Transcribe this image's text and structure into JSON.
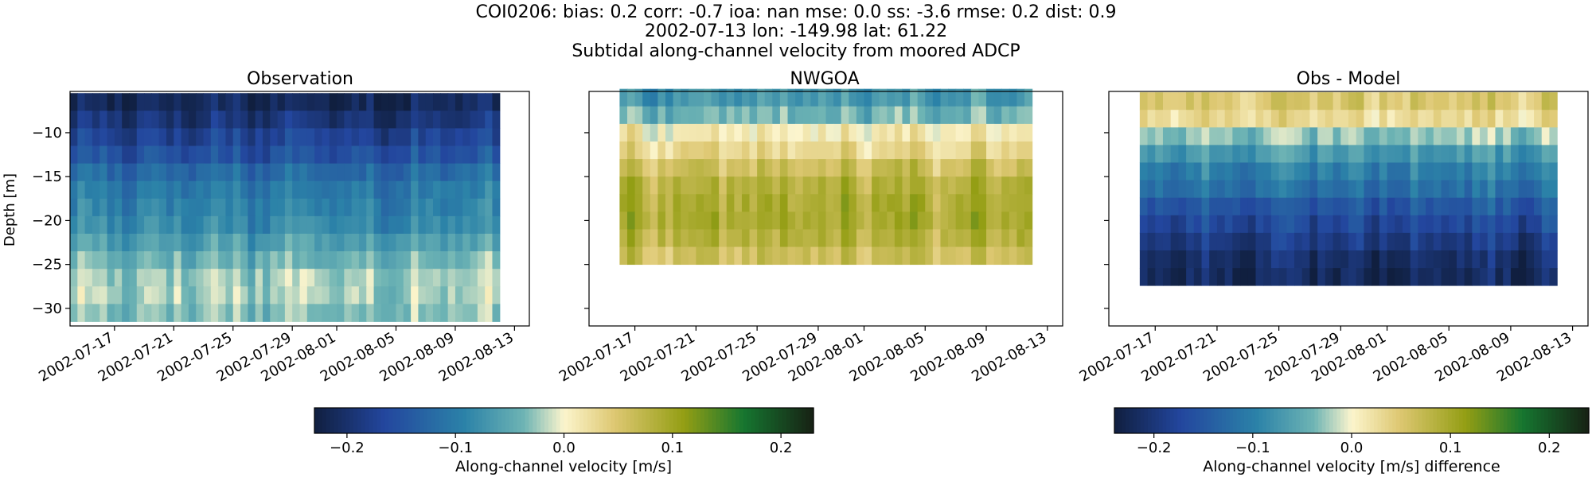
{
  "figure": {
    "title_lines": [
      "COI0206: bias: 0.2  corr: -0.7  ioa: nan  mse: 0.0  ss: -3.6  rmse: 0.2  dist: 0.9",
      "2002-07-13 lon: -149.98 lat: 61.22",
      "Subtidal along-channel velocity from moored ADCP"
    ]
  },
  "chart_data": [
    {
      "type": "heatmap",
      "title": "Observation",
      "ylabel": "Depth [m]",
      "xlabel": "",
      "x_ticks": [
        "2002-07-17",
        "2002-07-21",
        "2002-07-25",
        "2002-07-29",
        "2002-08-01",
        "2002-08-05",
        "2002-08-09",
        "2002-08-13"
      ],
      "x_range": [
        "2002-07-14",
        "2002-08-14"
      ],
      "data_time_range": [
        "2002-07-14",
        "2002-08-12"
      ],
      "y_ticks": [
        -10,
        -15,
        -20,
        -25,
        -30
      ],
      "ylim": [
        -32,
        -5.3
      ],
      "depth_bins": [
        -6.5,
        -8.5,
        -10.5,
        -12.5,
        -14.5,
        -16.5,
        -18.5,
        -20.5,
        -22.5,
        -24.5,
        -26.5,
        -28.5,
        -30.5
      ],
      "depth_bin_height": 2,
      "profile_values": [
        -0.21,
        -0.19,
        -0.17,
        -0.15,
        -0.12,
        -0.1,
        -0.09,
        -0.08,
        -0.06,
        -0.04,
        -0.02,
        -0.02,
        -0.03
      ],
      "colorbar": {
        "label": "Along-channel velocity [m/s]",
        "range": [
          -0.23,
          0.23
        ],
        "ticks": [
          -0.2,
          -0.1,
          0.0,
          0.1,
          0.2
        ],
        "tick_labels": [
          "−0.2",
          "−0.1",
          "0.0",
          "0.1",
          "0.2"
        ],
        "colormap": "delta"
      }
    },
    {
      "type": "heatmap",
      "title": "NWGOA",
      "ylabel": "",
      "xlabel": "",
      "x_ticks": [
        "2002-07-17",
        "2002-07-21",
        "2002-07-25",
        "2002-07-29",
        "2002-08-01",
        "2002-08-05",
        "2002-08-09",
        "2002-08-13"
      ],
      "x_range": [
        "2002-07-14",
        "2002-08-14"
      ],
      "data_time_range": [
        "2002-07-16",
        "2002-08-12"
      ],
      "y_ticks": [
        -10,
        -15,
        -20,
        -25,
        -30
      ],
      "ylim": [
        -32,
        -5.3
      ],
      "depth_bins": [
        -6,
        -8,
        -10,
        -12,
        -14,
        -16,
        -18,
        -20,
        -22,
        -24
      ],
      "depth_bin_height": 2,
      "profile_values": [
        -0.07,
        -0.04,
        0.01,
        0.03,
        0.06,
        0.08,
        0.09,
        0.09,
        0.08,
        0.06
      ],
      "colorbar_ref": 0
    },
    {
      "type": "heatmap",
      "title": "Obs - Model",
      "ylabel": "",
      "xlabel": "",
      "x_ticks": [
        "2002-07-17",
        "2002-07-21",
        "2002-07-25",
        "2002-07-29",
        "2002-08-01",
        "2002-08-05",
        "2002-08-09",
        "2002-08-13"
      ],
      "x_range": [
        "2002-07-14",
        "2002-08-14"
      ],
      "data_time_range": [
        "2002-07-16",
        "2002-08-12"
      ],
      "y_ticks": [
        -10,
        -15,
        -20,
        -25,
        -30
      ],
      "ylim": [
        -32,
        -5.3
      ],
      "depth_bins": [
        -6.4,
        -8.4,
        -10.4,
        -12.4,
        -14.4,
        -16.4,
        -18.4,
        -20.4,
        -22.4,
        -24.4,
        -26.4
      ],
      "depth_bin_height": 2,
      "profile_values": [
        0.05,
        0.03,
        -0.03,
        -0.07,
        -0.1,
        -0.12,
        -0.15,
        -0.17,
        -0.19,
        -0.21,
        -0.22
      ],
      "colorbar": {
        "label": "Along-channel velocity [m/s] difference",
        "range": [
          -0.24,
          0.24
        ],
        "ticks": [
          -0.2,
          -0.1,
          0.0,
          0.1,
          0.2
        ],
        "tick_labels": [
          "−0.2",
          "−0.1",
          "0.0",
          "0.1",
          "0.2"
        ],
        "colormap": "delta"
      }
    }
  ]
}
